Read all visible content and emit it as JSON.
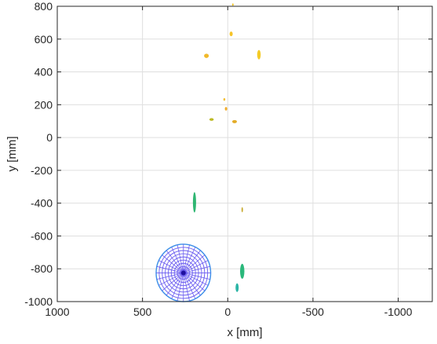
{
  "chart_data": {
    "type": "scatter",
    "title": "",
    "xlabel": "x [mm]",
    "ylabel": "y [mm]",
    "xlim": [
      1000,
      -1200
    ],
    "x_reversed": true,
    "ylim": [
      -1000,
      800
    ],
    "xticks": [
      1000,
      500,
      0,
      -500,
      -1000
    ],
    "xtick_labels": [
      "1000",
      "500",
      "0",
      "-500",
      "-1000"
    ],
    "yticks": [
      800,
      600,
      400,
      200,
      0,
      -200,
      -400,
      -600,
      -800,
      -1000
    ],
    "ytick_labels": [
      "800",
      "600",
      "400",
      "200",
      "0",
      "-200",
      "-400",
      "-600",
      "-800",
      "-1000"
    ],
    "grid": true,
    "box": "on",
    "blobs": [
      {
        "x": -30,
        "y": 810,
        "rx": 4,
        "ry": 6,
        "color": "#f2c21a"
      },
      {
        "x": -20,
        "y": 632,
        "rx": 8,
        "ry": 12,
        "color": "#f5c11e"
      },
      {
        "x": 125,
        "y": 498,
        "rx": 12,
        "ry": 11,
        "color": "#f0b51f"
      },
      {
        "x": -183,
        "y": 505,
        "rx": 9,
        "ry": 24,
        "color": "#f3c81a"
      },
      {
        "x": 20,
        "y": 232,
        "rx": 5,
        "ry": 7,
        "color": "#f2bd2a"
      },
      {
        "x": 10,
        "y": 175,
        "rx": 6,
        "ry": 9,
        "color": "#f0a81f"
      },
      {
        "x": 95,
        "y": 110,
        "rx": 11,
        "ry": 7,
        "color": "#b9b61a"
      },
      {
        "x": -40,
        "y": 97,
        "rx": 12,
        "ry": 8,
        "color": "#e2a81c"
      },
      {
        "x": 195,
        "y": -395,
        "rx": 8,
        "ry": 52,
        "color": "#24b26a"
      },
      {
        "x": -85,
        "y": -440,
        "rx": 4,
        "ry": 13,
        "color": "#c6a92b"
      },
      {
        "x": -85,
        "y": -815,
        "rx": 11,
        "ry": 38,
        "color": "#20b474"
      },
      {
        "x": -55,
        "y": -915,
        "rx": 8,
        "ry": 22,
        "color": "#1fb0a0"
      }
    ],
    "mesh": {
      "center_x": 260,
      "center_y": -825,
      "radius_x": 160,
      "radius_y": 175,
      "rings": 9,
      "spokes": 28,
      "line_color": "#6a5cf0",
      "outer_color": "#3b8fe8",
      "center_color": "#1f10a0"
    },
    "colors": {
      "axis": "#262626",
      "grid": "#dfdfdf"
    }
  }
}
